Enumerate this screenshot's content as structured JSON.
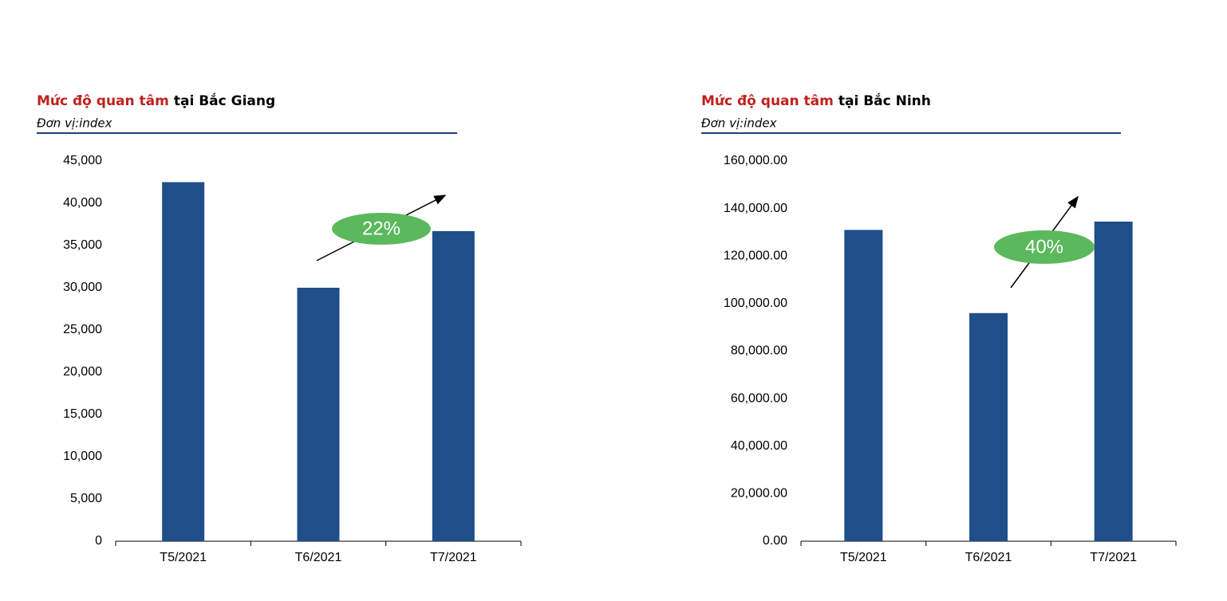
{
  "chart_data": [
    {
      "type": "bar",
      "title": [
        "Mức độ quan tâm",
        "tại Bắc Giang"
      ],
      "subtitle": "Đơn vị:index",
      "categories": [
        "T5/2021",
        "T6/2021",
        "T7/2021"
      ],
      "values": [
        42500,
        30000,
        36700
      ],
      "color": "#1f4e89",
      "ylim": [
        0,
        45000
      ],
      "yticks": [
        0,
        {
          "value": 5000,
          "label": "5,000"
        },
        {
          "value": 10000,
          "label": "10,000"
        },
        {
          "value": 15000,
          "label": "15,000"
        },
        {
          "value": 20000,
          "label": "20,000"
        },
        {
          "value": 25000,
          "label": "25,000"
        },
        {
          "value": 30000,
          "label": "30,000"
        },
        {
          "value": 35000,
          "label": "35,000"
        },
        {
          "value": 40000,
          "label": "40,000"
        },
        {
          "value": 45000,
          "label": "45,000"
        }
      ],
      "annotation": "22%"
    },
    {
      "type": "bar",
      "title": [
        "Mức độ quan tâm",
        "tại Bắc Ninh"
      ],
      "subtitle": "Đơn vị:index",
      "categories": [
        "T5/2021",
        "T6/2021",
        "T7/2021"
      ],
      "values": [
        131000,
        96000,
        134500
      ],
      "color": "#1f4e89",
      "ylim": [
        0,
        160000
      ],
      "yticks": [
        {
          "value": 0,
          "label": "0.00"
        },
        {
          "value": 20000,
          "label": "20,000.00"
        },
        {
          "value": 40000,
          "label": "40,000.00"
        },
        {
          "value": 60000,
          "label": "60,000.00"
        },
        {
          "value": 80000,
          "label": "80,000.00"
        },
        {
          "value": 100000,
          "label": "100,000.00"
        },
        {
          "value": 120000,
          "label": "120,000.00"
        },
        {
          "value": 140000,
          "label": "140,000.00"
        },
        {
          "value": 160000,
          "label": "160,000.00"
        }
      ],
      "annotation": "40%"
    }
  ]
}
